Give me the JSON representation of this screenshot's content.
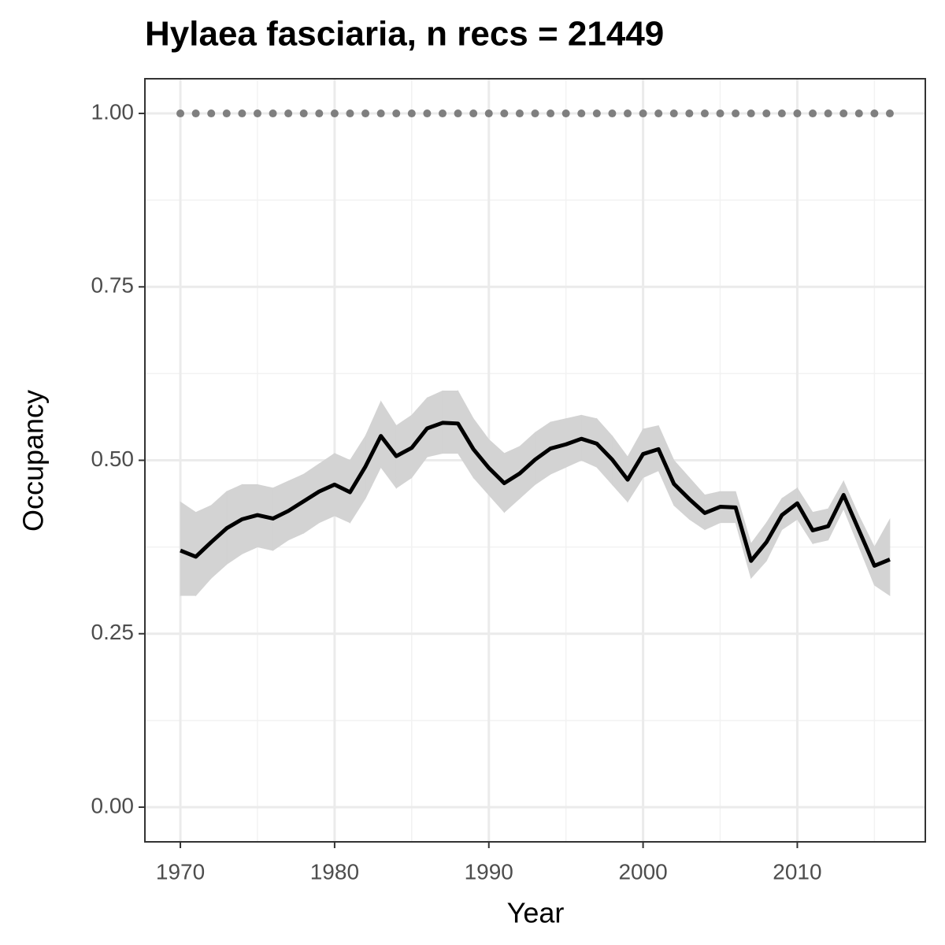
{
  "chart_data": {
    "type": "line",
    "title": "Hylaea fasciaria, n recs = 21449",
    "x_label": "Year",
    "y_label": "Occupancy",
    "x": [
      1970,
      1971,
      1972,
      1973,
      1974,
      1975,
      1976,
      1977,
      1978,
      1979,
      1980,
      1981,
      1982,
      1983,
      1984,
      1985,
      1986,
      1987,
      1988,
      1989,
      1990,
      1991,
      1992,
      1993,
      1994,
      1995,
      1996,
      1997,
      1998,
      1999,
      2000,
      2001,
      2002,
      2003,
      2004,
      2005,
      2006,
      2007,
      2008,
      2009,
      2010,
      2011,
      2012,
      2013,
      2014,
      2015,
      2016
    ],
    "series": [
      {
        "color": "#000000",
        "style": "solid",
        "values": [
          0.37,
          0.361,
          0.382,
          0.402,
          0.415,
          0.421,
          0.416,
          0.427,
          0.441,
          0.455,
          0.465,
          0.454,
          0.491,
          0.535,
          0.506,
          0.518,
          0.546,
          0.554,
          0.553,
          0.516,
          0.489,
          0.467,
          0.481,
          0.501,
          0.517,
          0.523,
          0.531,
          0.524,
          0.501,
          0.472,
          0.509,
          0.516,
          0.466,
          0.444,
          0.424,
          0.433,
          0.432,
          0.355,
          0.382,
          0.421,
          0.438,
          0.399,
          0.405,
          0.45,
          0.399,
          0.348,
          0.357
        ]
      },
      {
        "color": "#7f7f7f",
        "style": "dotted",
        "values": [
          1,
          1,
          1,
          1,
          1,
          1,
          1,
          1,
          1,
          1,
          1,
          1,
          1,
          1,
          1,
          1,
          1,
          1,
          1,
          1,
          1,
          1,
          1,
          1,
          1,
          1,
          1,
          1,
          1,
          1,
          1,
          1,
          1,
          1,
          1,
          1,
          1,
          1,
          1,
          1,
          1,
          1,
          1,
          1,
          1,
          1,
          1
        ]
      }
    ],
    "band": {
      "color": "#d3d3d3",
      "lower": [
        0.305,
        0.305,
        0.33,
        0.35,
        0.365,
        0.375,
        0.37,
        0.385,
        0.395,
        0.41,
        0.42,
        0.41,
        0.445,
        0.49,
        0.46,
        0.475,
        0.505,
        0.51,
        0.51,
        0.475,
        0.45,
        0.425,
        0.445,
        0.465,
        0.48,
        0.49,
        0.5,
        0.49,
        0.465,
        0.44,
        0.475,
        0.485,
        0.435,
        0.415,
        0.4,
        0.41,
        0.41,
        0.33,
        0.355,
        0.4,
        0.415,
        0.38,
        0.385,
        0.43,
        0.375,
        0.32,
        0.305
      ],
      "upper": [
        0.44,
        0.425,
        0.435,
        0.455,
        0.465,
        0.465,
        0.46,
        0.47,
        0.48,
        0.495,
        0.51,
        0.5,
        0.535,
        0.585,
        0.55,
        0.565,
        0.59,
        0.6,
        0.6,
        0.56,
        0.53,
        0.51,
        0.52,
        0.54,
        0.555,
        0.56,
        0.565,
        0.56,
        0.535,
        0.505,
        0.545,
        0.55,
        0.5,
        0.475,
        0.45,
        0.455,
        0.455,
        0.38,
        0.41,
        0.445,
        0.46,
        0.425,
        0.43,
        0.47,
        0.42,
        0.375,
        0.415
      ]
    },
    "xlim": [
      1967.7,
      2018.3
    ],
    "ylim": [
      -0.05,
      1.05
    ],
    "xticks": [
      1970,
      1980,
      1990,
      2000,
      2010
    ],
    "yticks": [
      {
        "value": 0,
        "label": "0.00"
      },
      {
        "value": 0.25,
        "label": "0.25"
      },
      {
        "value": 0.5,
        "label": "0.50"
      },
      {
        "value": 0.75,
        "label": "0.75"
      },
      {
        "value": 1,
        "label": "1.00"
      }
    ],
    "x_minor_ticks": [
      1975,
      1985,
      1995,
      2005,
      2015
    ],
    "y_minor_ticks": [
      0.125,
      0.375,
      0.625,
      0.875
    ],
    "grid": true
  }
}
